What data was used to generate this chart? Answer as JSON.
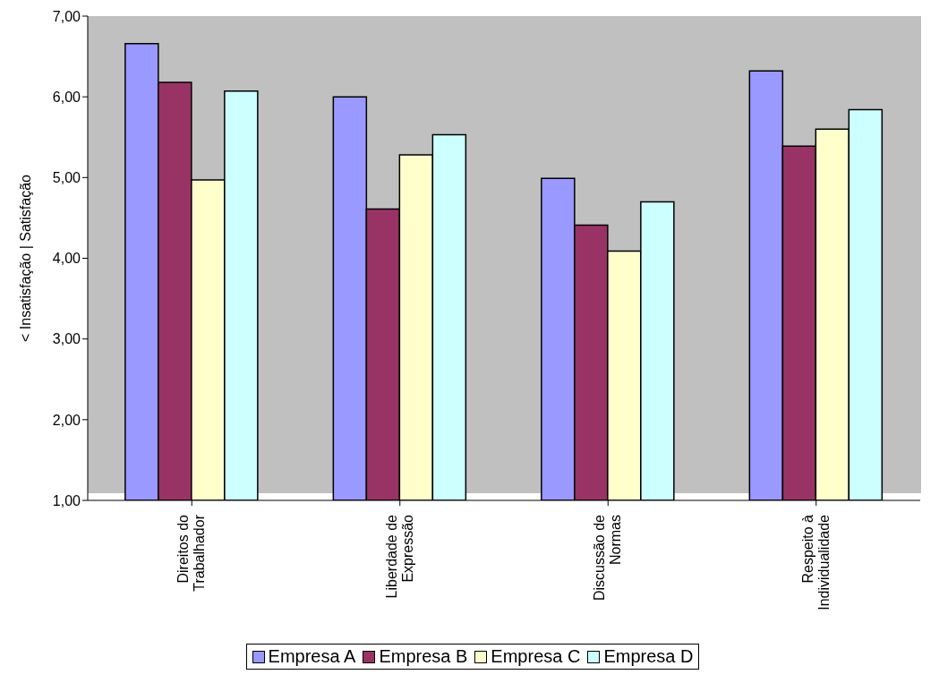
{
  "chart_data": {
    "type": "bar",
    "ylabel": "< Insatisfação  |  Satisfação",
    "categories": [
      "Direitos do Trabalhador",
      "Liberdade de Expressão",
      "Discussão de Normas",
      "Respeito à Individualidade"
    ],
    "series": [
      {
        "name": "Empresa A",
        "color": "#9999ff",
        "values": [
          6.66,
          6.0,
          4.99,
          6.32
        ]
      },
      {
        "name": "Empresa B",
        "color": "#993366",
        "values": [
          6.18,
          4.61,
          4.41,
          5.39
        ]
      },
      {
        "name": "Empresa C",
        "color": "#ffffcc",
        "values": [
          4.97,
          5.28,
          4.09,
          5.6
        ]
      },
      {
        "name": "Empresa D",
        "color": "#ccffff",
        "values": [
          6.07,
          5.53,
          4.7,
          5.84
        ]
      }
    ],
    "ylim": [
      1,
      7
    ],
    "yticks": [
      {
        "value": 1,
        "label": "1,00"
      },
      {
        "value": 2,
        "label": "2,00"
      },
      {
        "value": 3,
        "label": "3,00"
      },
      {
        "value": 4,
        "label": "4,00"
      },
      {
        "value": 5,
        "label": "5,00"
      },
      {
        "value": 6,
        "label": "6,00"
      },
      {
        "value": 7,
        "label": "7,00"
      }
    ],
    "grid": false,
    "legend": "bottom"
  }
}
